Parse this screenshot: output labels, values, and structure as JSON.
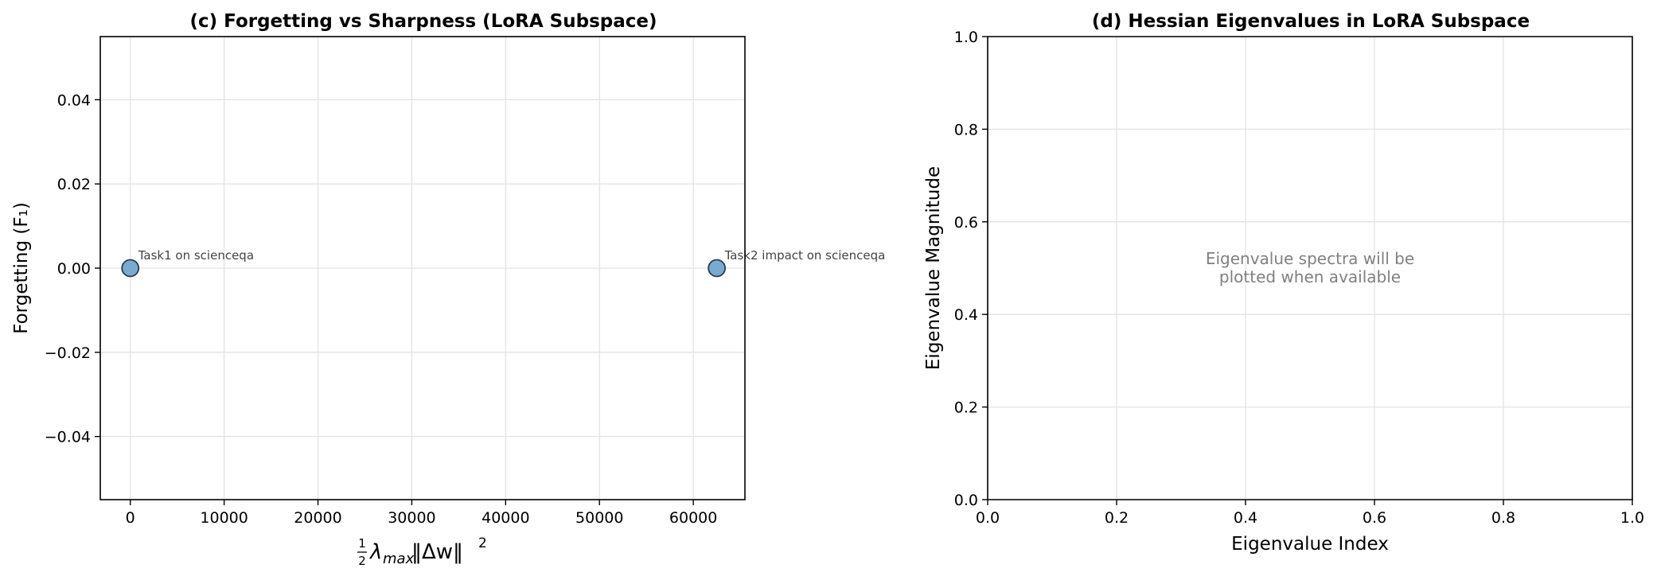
{
  "chart_data": [
    {
      "type": "scatter",
      "title": "(c) Forgetting vs Sharpness (LoRA Subspace)",
      "xlabel_parts": {
        "fraction_num": "1",
        "fraction_den": "2",
        "body": "λ",
        "sub": "max",
        "norm": "‖Δw‖",
        "sup": "2"
      },
      "ylabel": "Forgetting (F₁)",
      "xlim": [
        -3200,
        65500
      ],
      "ylim": [
        -0.055,
        0.055
      ],
      "xticks": [
        0,
        10000,
        20000,
        30000,
        40000,
        50000,
        60000
      ],
      "xtick_labels": [
        "0",
        "10000",
        "20000",
        "30000",
        "40000",
        "50000",
        "60000"
      ],
      "yticks": [
        0.04,
        0.02,
        0.0,
        -0.02,
        -0.04
      ],
      "ytick_labels": [
        "0.04",
        "0.02",
        "0.00",
        "−0.02",
        "−0.04"
      ],
      "grid": true,
      "point_color": "#7aaacf",
      "points": [
        {
          "x": 0,
          "y": 0.0,
          "label": "Task1 on scienceqa"
        },
        {
          "x": 62500,
          "y": 0.0,
          "label": "Task2 impact on scienceqa"
        }
      ]
    },
    {
      "type": "line",
      "title": "(d) Hessian Eigenvalues in LoRA Subspace",
      "xlabel": "Eigenvalue Index",
      "ylabel": "Eigenvalue Magnitude",
      "xlim": [
        0.0,
        1.0
      ],
      "ylim": [
        0.0,
        1.0
      ],
      "xticks": [
        0.0,
        0.2,
        0.4,
        0.6,
        0.8,
        1.0
      ],
      "xtick_labels": [
        "0.0",
        "0.2",
        "0.4",
        "0.6",
        "0.8",
        "1.0"
      ],
      "yticks": [
        0.0,
        0.2,
        0.4,
        0.6,
        0.8,
        1.0
      ],
      "ytick_labels": [
        "0.0",
        "0.2",
        "0.4",
        "0.6",
        "0.8",
        "1.0"
      ],
      "grid": true,
      "series": [],
      "placeholder_lines": [
        "Eigenvalue spectra will be",
        "plotted when available"
      ]
    }
  ]
}
